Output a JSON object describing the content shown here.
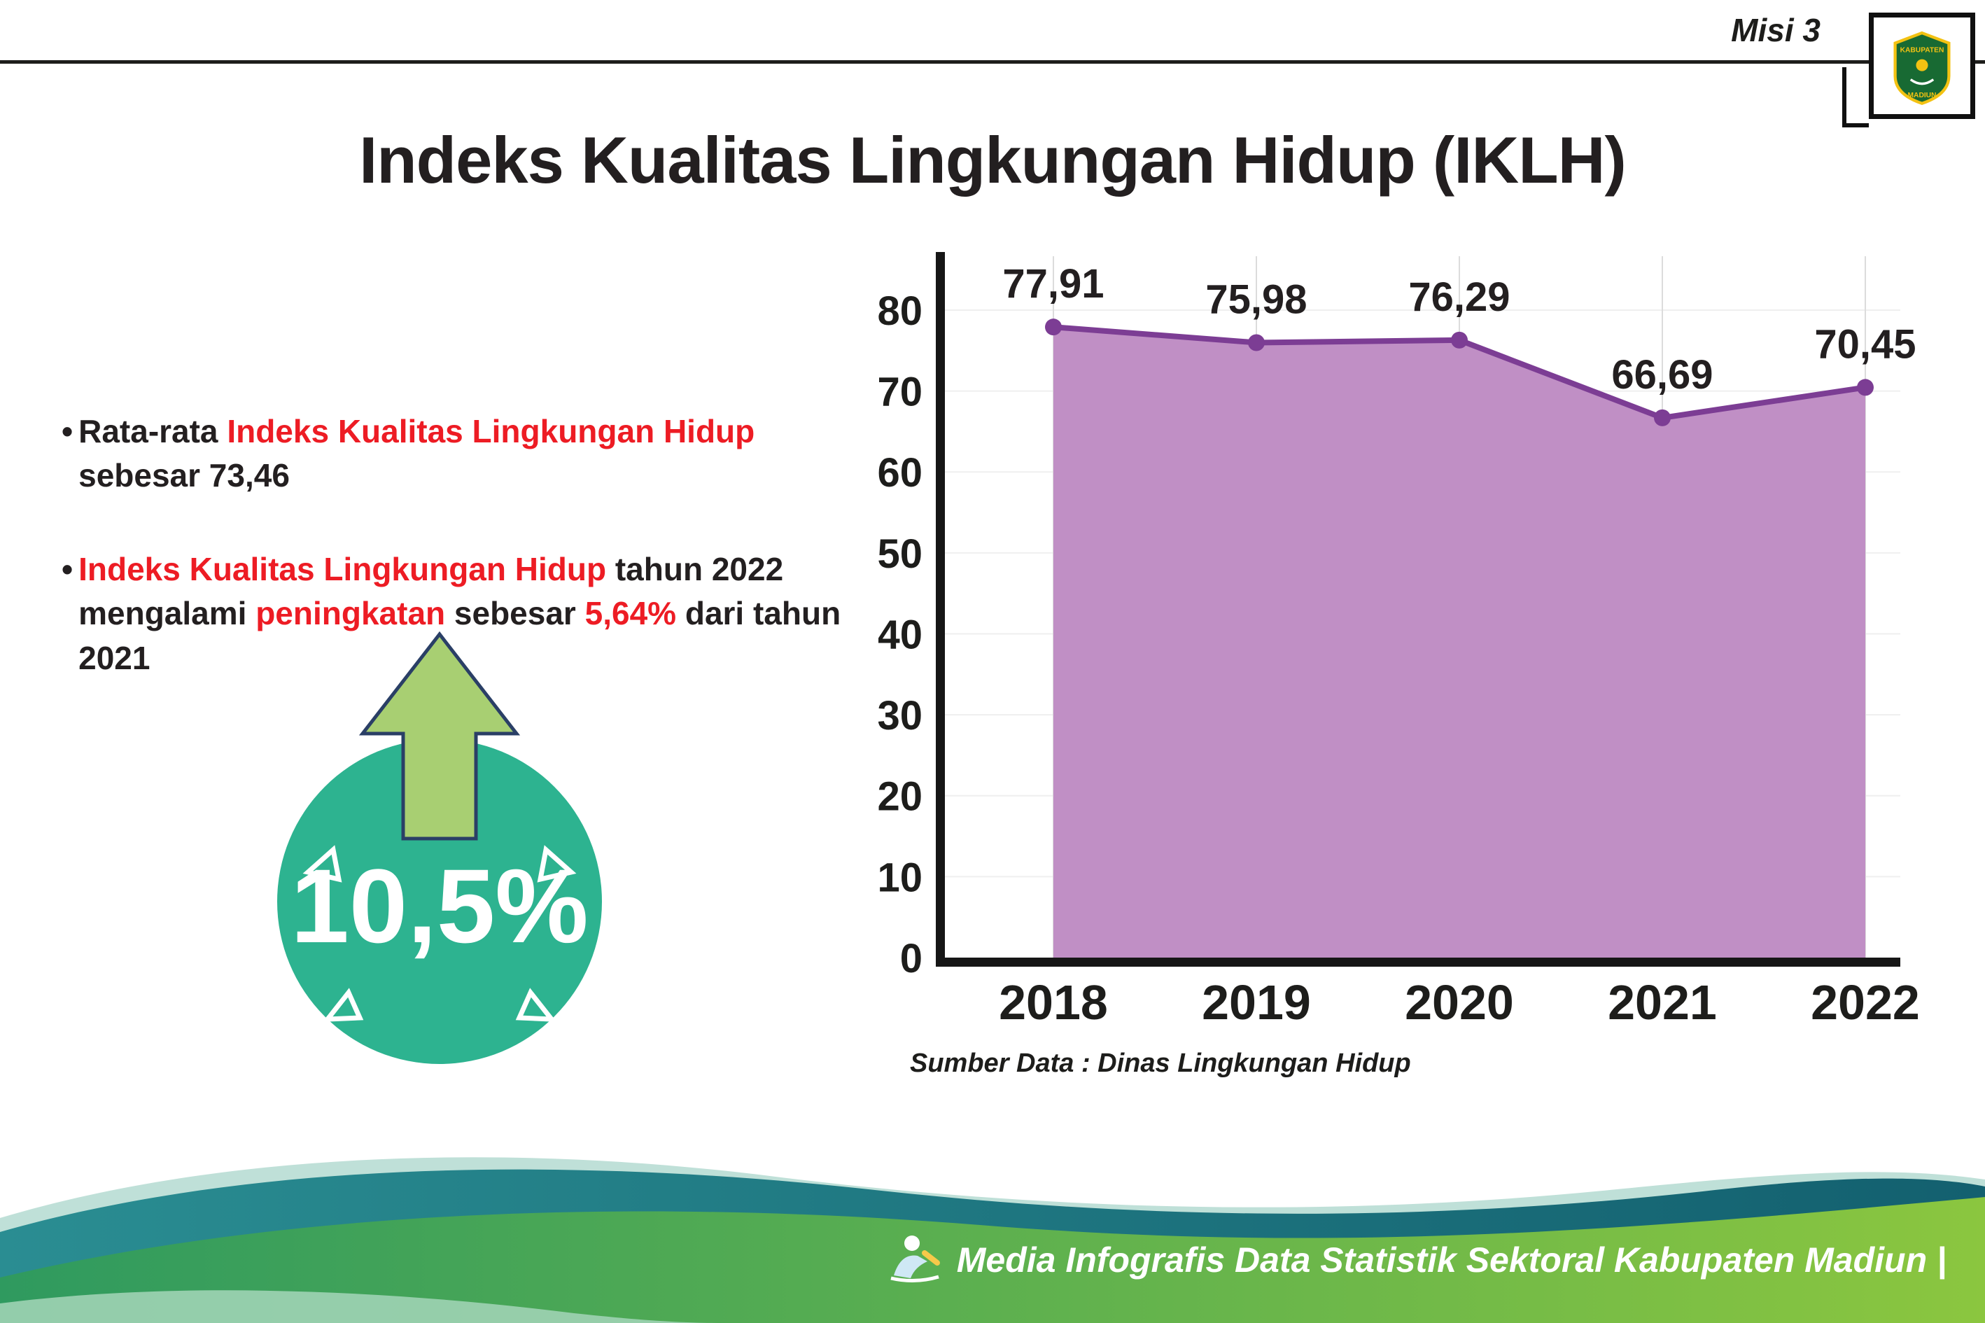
{
  "page": {
    "misi_label": "Misi 3",
    "title": "Indeks Kualitas Lingkungan Hidup (IKLH)",
    "bullet_char": "•"
  },
  "logo": {
    "top_text": "KABUPATEN",
    "bottom_text": "MADIUN"
  },
  "bullets": [
    {
      "segments": [
        {
          "text": "Rata-rata ",
          "color": "dark"
        },
        {
          "text": "Indeks Kualitas Lingkungan Hidup",
          "color": "red"
        },
        {
          "text": " sebesar 73,46",
          "color": "dark"
        }
      ]
    },
    {
      "segments": [
        {
          "text": "Indeks Kualitas Lingkungan Hidup",
          "color": "red"
        },
        {
          "text": " tahun 2022 mengalami ",
          "color": "dark"
        },
        {
          "text": "peningkatan",
          "color": "red"
        },
        {
          "text": " sebesar ",
          "color": "dark"
        },
        {
          "text": "5,64%",
          "color": "red"
        },
        {
          "text": " dari tahun 2021",
          "color": "dark"
        }
      ]
    }
  ],
  "badge": {
    "value": "10,5%",
    "circle_color": "#2db390",
    "arrow_color": "#a8cf72"
  },
  "chart_data": {
    "type": "area",
    "categories": [
      "2018",
      "2019",
      "2020",
      "2021",
      "2022"
    ],
    "values": [
      77.91,
      75.98,
      76.29,
      66.69,
      70.45
    ],
    "value_labels": [
      "77,91",
      "75,98",
      "76,29",
      "66,69",
      "70,45"
    ],
    "title": "",
    "xlabel": "",
    "ylabel": "",
    "ylim": [
      0,
      80
    ],
    "yticks": [
      0,
      10,
      20,
      30,
      40,
      50,
      60,
      70,
      80
    ],
    "grid": true,
    "legend": false,
    "area_color": "#c08fc5",
    "line_color": "#7c3d94",
    "source": "Sumber Data : Dinas Lingkungan Hidup"
  },
  "footer": {
    "caption": "Media Infografis Data Statistik Sektoral Kabupaten Madiun |"
  },
  "colors": {
    "red": "#ed1c24",
    "dark": "#231f20",
    "teal_wave": "#237f8a",
    "green_wave": "#6cbb4e"
  }
}
